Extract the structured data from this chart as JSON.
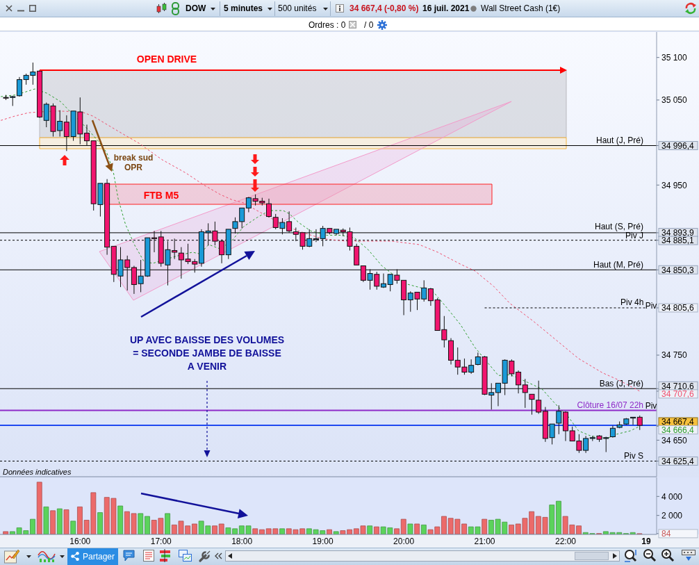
{
  "chart_data": [
    {
      "type": "candlestick",
      "title": "DOW",
      "subtitle": "5 minutes",
      "x": [
        15.0833,
        15.1667,
        15.25,
        15.3333,
        15.4167,
        15.5,
        15.5833,
        15.6667,
        15.75,
        15.8333,
        15.9167,
        16,
        16.0833,
        16.1667,
        16.25,
        16.3333,
        16.4167,
        16.5,
        16.5833,
        16.6667,
        16.75,
        16.8333,
        16.9167,
        17,
        17.0833,
        17.1667,
        17.25,
        17.3333,
        17.4167,
        17.5,
        17.5833,
        17.6667,
        17.75,
        17.8333,
        17.9167,
        18,
        18.0833,
        18.1667,
        18.25,
        18.3333,
        18.4167,
        18.5,
        18.5833,
        18.6667,
        18.75,
        18.8333,
        18.9167,
        19,
        19.0833,
        19.1667,
        19.25,
        19.3333,
        19.4167,
        19.5,
        19.5833,
        19.6667,
        19.75,
        19.8333,
        19.9167,
        20,
        20.0833,
        20.1667,
        20.25,
        20.3333,
        20.4167,
        20.5,
        20.5833,
        20.6667,
        20.75,
        20.8333,
        20.9167,
        21,
        21.0833,
        21.1667,
        21.25,
        21.3333,
        21.4167,
        21.5,
        21.5833,
        21.6667,
        21.75,
        21.8333,
        21.9167,
        22,
        22.0833,
        22.1667,
        22.25,
        22.3333,
        22.4167,
        22.5,
        22.5833,
        22.6667,
        22.75,
        22.8333,
        22.9167
      ],
      "ohlc": [
        [
          35053,
          35056,
          35050,
          35053
        ],
        [
          35053,
          35055,
          35043,
          35054
        ],
        [
          35055,
          35077,
          35054,
          35074
        ],
        [
          35074,
          35081,
          35068,
          35079
        ],
        [
          35079,
          35094,
          35068,
          35083
        ],
        [
          35084,
          35085,
          35029,
          35030
        ],
        [
          35026,
          35047,
          35018,
          35045
        ],
        [
          35043,
          35046,
          35007,
          35013
        ],
        [
          35014,
          35038,
          35007,
          35025
        ],
        [
          35024,
          35032,
          34990,
          35007
        ],
        [
          35007,
          35037,
          35002,
          35037
        ],
        [
          35036,
          35053,
          34998,
          35010
        ],
        [
          35011,
          35021,
          34996,
          35002
        ],
        [
          35002,
          35002,
          34920,
          34928
        ],
        [
          34927,
          34952,
          34913,
          34952
        ],
        [
          34952,
          34957,
          34868,
          34877
        ],
        [
          34878,
          34878,
          34836,
          34845
        ],
        [
          34843,
          34877,
          34830,
          34862
        ],
        [
          34862,
          34867,
          34826,
          34853
        ],
        [
          34853,
          34855,
          34822,
          34833
        ],
        [
          34834,
          34862,
          34824,
          34843
        ],
        [
          34843,
          34888,
          34842,
          34888
        ],
        [
          34888,
          34896,
          34871,
          34887
        ],
        [
          34889,
          34896,
          34854,
          34858
        ],
        [
          34856,
          34884,
          34832,
          34874
        ],
        [
          34873,
          34887,
          34863,
          34871
        ],
        [
          34870,
          34877,
          34840,
          34862
        ],
        [
          34863,
          34881,
          34857,
          34860
        ],
        [
          34860,
          34863,
          34847,
          34857
        ],
        [
          34858,
          34898,
          34854,
          34895
        ],
        [
          34894,
          34905,
          34879,
          34896
        ],
        [
          34896,
          34907,
          34879,
          34884
        ],
        [
          34884,
          34886,
          34858,
          34868
        ],
        [
          34868,
          34898,
          34863,
          34898
        ],
        [
          34899,
          34912,
          34893,
          34907
        ],
        [
          34907,
          34923,
          34899,
          34923
        ],
        [
          34923,
          34936,
          34918,
          34935
        ],
        [
          34934,
          34939,
          34926,
          34931
        ],
        [
          34931,
          34935,
          34926,
          34929
        ],
        [
          34928,
          34934,
          34912,
          34913
        ],
        [
          34912,
          34916,
          34898,
          34900
        ],
        [
          34899,
          34911,
          34892,
          34906
        ],
        [
          34907,
          34919,
          34894,
          34896
        ],
        [
          34895,
          34900,
          34884,
          34892
        ],
        [
          34894,
          34894,
          34874,
          34878
        ],
        [
          34878,
          34898,
          34877,
          34887
        ],
        [
          34886,
          34898,
          34883,
          34887
        ],
        [
          34887,
          34902,
          34878,
          34899
        ],
        [
          34899,
          34899,
          34892,
          34894
        ],
        [
          34893,
          34898,
          34891,
          34898
        ],
        [
          34897,
          34899,
          34890,
          34895
        ],
        [
          34895,
          34900,
          34873,
          34878
        ],
        [
          34878,
          34881,
          34856,
          34856
        ],
        [
          34855,
          34855,
          34836,
          34838
        ],
        [
          34838,
          34851,
          34827,
          34846
        ],
        [
          34845,
          34848,
          34827,
          34831
        ],
        [
          34830,
          34846,
          34829,
          34834
        ],
        [
          34833,
          34845,
          34825,
          34845
        ],
        [
          34844,
          34851,
          34834,
          34838
        ],
        [
          34838,
          34838,
          34797,
          34815
        ],
        [
          34815,
          34825,
          34801,
          34823
        ],
        [
          34824,
          34824,
          34803,
          34816
        ],
        [
          34816,
          34838,
          34813,
          34829
        ],
        [
          34828,
          34829,
          34808,
          34814
        ],
        [
          34815,
          34817,
          34779,
          34779
        ],
        [
          34780,
          34796,
          34759,
          34768
        ],
        [
          34767,
          34770,
          34739,
          34744
        ],
        [
          34744,
          34759,
          34727,
          34736
        ],
        [
          34736,
          34746,
          34727,
          34730
        ],
        [
          34730,
          34745,
          34728,
          34738
        ],
        [
          34739,
          34753,
          34738,
          34748
        ],
        [
          34748,
          34749,
          34703,
          34704
        ],
        [
          34703,
          34717,
          34686,
          34706
        ],
        [
          34706,
          34717,
          34690,
          34717
        ],
        [
          34717,
          34745,
          34703,
          34744
        ],
        [
          34743,
          34745,
          34725,
          34728
        ],
        [
          34730,
          34732,
          34705,
          34715
        ],
        [
          34715,
          34722,
          34688,
          34706
        ],
        [
          34704,
          34704,
          34680,
          34698
        ],
        [
          34697,
          34720,
          34681,
          34683
        ],
        [
          34684,
          34689,
          34648,
          34652
        ],
        [
          34653,
          34669,
          34645,
          34669
        ],
        [
          34670,
          34691,
          34657,
          34684
        ],
        [
          34683,
          34684,
          34649,
          34661
        ],
        [
          34661,
          34666,
          34649,
          34649
        ],
        [
          34649,
          34657,
          34635,
          34638
        ],
        [
          34638,
          34655,
          34635,
          34652
        ],
        [
          34652,
          34655,
          34649,
          34653
        ],
        [
          34655,
          34656,
          34648,
          34651
        ],
        [
          34652,
          34654,
          34636,
          34653
        ],
        [
          34654,
          34667,
          34653,
          34664
        ],
        [
          34665,
          34672,
          34664,
          34668
        ],
        [
          34669,
          34676,
          34668,
          34675
        ],
        [
          34676,
          34677,
          34668,
          34677
        ],
        [
          34677,
          34679,
          34662,
          34667.4
        ]
      ],
      "colors": [
        "#f2156f",
        "#1b9ad7",
        "#1b9ad7",
        "#1b9ad7",
        "#1b9ad7",
        "#f2156f",
        "#1b9ad7",
        "#f2156f",
        "#1b9ad7",
        "#f2156f",
        "#1b9ad7",
        "#f2156f",
        "#f2156f",
        "#f2156f",
        "#1b9ad7",
        "#f2156f",
        "#f2156f",
        "#1b9ad7",
        "#f2156f",
        "#f2156f",
        "#1b9ad7",
        "#1b9ad7",
        "#f2156f",
        "#f2156f",
        "#1b9ad7",
        "#f2156f",
        "#f2156f",
        "#f2156f",
        "#f2156f",
        "#1b9ad7",
        "#1b9ad7",
        "#f2156f",
        "#f2156f",
        "#1b9ad7",
        "#1b9ad7",
        "#1b9ad7",
        "#1b9ad7",
        "#f2156f",
        "#f2156f",
        "#f2156f",
        "#f2156f",
        "#1b9ad7",
        "#f2156f",
        "#f2156f",
        "#f2156f",
        "#1b9ad7",
        "#1b9ad7",
        "#1b9ad7",
        "#f2156f",
        "#1b9ad7",
        "#f2156f",
        "#f2156f",
        "#f2156f",
        "#f2156f",
        "#1b9ad7",
        "#f2156f",
        "#1b9ad7",
        "#1b9ad7",
        "#f2156f",
        "#f2156f",
        "#1b9ad7",
        "#f2156f",
        "#1b9ad7",
        "#f2156f",
        "#f2156f",
        "#f2156f",
        "#f2156f",
        "#f2156f",
        "#f2156f",
        "#1b9ad7",
        "#1b9ad7",
        "#f2156f",
        "#1b9ad7",
        "#1b9ad7",
        "#1b9ad7",
        "#f2156f",
        "#f2156f",
        "#f2156f",
        "#f2156f",
        "#f2156f",
        "#f2156f",
        "#1b9ad7",
        "#1b9ad7",
        "#f2156f",
        "#f2156f",
        "#f2156f",
        "#1b9ad7",
        "#1b9ad7",
        "#f2156f",
        "#1b9ad7",
        "#1b9ad7",
        "#1b9ad7",
        "#1b9ad7",
        "#1b9ad7",
        "#f2156f"
      ],
      "series": [
        {
          "type": "line",
          "x": [
            15.02,
            15.21,
            15.44,
            15.59,
            15.76,
            15.87,
            16.02,
            16.1,
            16.22,
            16.33,
            16.41,
            16.47,
            16.56,
            16.67,
            16.79,
            16.9,
            17.07,
            17.25,
            17.39,
            17.48,
            17.59,
            17.73,
            17.87,
            18.02,
            18.19,
            18.34,
            18.51,
            18.59,
            18.7,
            18.85,
            19.05,
            19.22,
            19.39,
            19.56,
            19.73,
            19.88,
            20.02,
            20.22,
            20.36,
            20.53,
            20.7,
            20.88,
            21.17,
            21.31,
            21.39,
            21.6,
            21.71,
            21.88,
            22.03,
            22.16,
            22.31,
            22.51,
            22.63,
            22.8,
            22.9167
          ],
          "values": [
            35054,
            35056,
            35063,
            35058,
            35048,
            35037,
            35023,
            35015,
            35002,
            34988,
            34966,
            34934,
            34904,
            34880,
            34860,
            34858,
            34863,
            34868,
            34871,
            34869,
            34880,
            34875,
            34884,
            34901,
            34912,
            34920,
            34920,
            34916,
            34906,
            34896,
            34891,
            34891,
            34888,
            34874,
            34855,
            34844,
            34834,
            34829,
            34825,
            34806,
            34786,
            34759,
            34726,
            34727,
            34724,
            34715,
            34710,
            34692,
            34678,
            34661,
            34655,
            34652,
            34657,
            34661,
            34666.4
          ],
          "color": "#2e9e2e",
          "line_style": "dashed"
        },
        {
          "type": "line",
          "x": [
            15.02,
            15.19,
            15.36,
            15.5,
            15.73,
            16.02,
            16.16,
            16.3,
            16.53,
            16.73,
            17.01,
            17.31,
            17.53,
            17.73,
            17.87,
            18.02,
            18.28,
            18.56,
            18.79,
            18.99,
            19.28,
            19.56,
            19.85,
            20.19,
            20.42,
            20.7,
            20.88,
            21.11,
            21.31,
            21.6,
            21.88,
            22.16,
            22.46,
            22.65,
            22.9167
          ],
          "values": [
            35026,
            35031,
            35035,
            35036,
            35037,
            35036,
            35031,
            35023,
            35010,
            34999,
            34980,
            34964,
            34950,
            34939,
            34933,
            34929,
            34915,
            34901,
            34893,
            34887,
            34884,
            34884,
            34884,
            34880,
            34871,
            34857,
            34849,
            34831,
            34811,
            34790,
            34768,
            34746,
            34729,
            34721,
            34707.6
          ],
          "color": "#f0506e",
          "line_style": "dashed"
        },
        {
          "type": "line",
          "name": "Piv 4h",
          "x": [
            21,
            23
          ],
          "values": [
            34805.6,
            34805.6
          ],
          "color": "#000000",
          "line_style": "dashed"
        }
      ],
      "xlim": [
        15.01,
        23.125
      ],
      "ylim": [
        34607,
        35130
      ],
      "yticks": [
        {
          "value": 35100,
          "label": "35 100"
        },
        {
          "value": 35050,
          "label": "35 050"
        },
        {
          "value": 34996.4,
          "label": "34 996,4"
        },
        {
          "value": 34950,
          "label": "34 950"
        },
        {
          "value": 34893.9,
          "label": "34 893,9"
        },
        {
          "value": 34885.1,
          "label": "34 885,1"
        },
        {
          "value": 34850.3,
          "label": "34 850,3"
        },
        {
          "value": 34805.6,
          "label": "34 805,6"
        },
        {
          "value": 34750,
          "label": "34 750"
        },
        {
          "value": 34710.6,
          "label": "34 710,6"
        },
        {
          "value": 34707.6,
          "label": "34 707,6"
        },
        {
          "value": 34667.4,
          "label": "34 667,4"
        },
        {
          "value": 34666.4,
          "label": "34 666,4"
        },
        {
          "value": 34650,
          "label": "34 650"
        },
        {
          "value": 34625.4,
          "label": "34 625,4"
        }
      ],
      "ref_lines": [
        {
          "axis": "y",
          "value": 34996.4,
          "label": "Haut (J, Pré)",
          "color": "#000000"
        },
        {
          "axis": "y",
          "value": 34893.9,
          "label": "Haut (S, Pré)",
          "color": "#000000"
        },
        {
          "axis": "y",
          "value": 34885.1,
          "label": "Piv J",
          "color": "#000000",
          "line_style": "dashed"
        },
        {
          "axis": "y",
          "value": 34850.3,
          "label": "Haut (M, Pré)",
          "color": "#000000"
        },
        {
          "axis": "y",
          "value": 34710.6,
          "label": "Bas (J, Pré)",
          "color": "#000000"
        },
        {
          "axis": "y",
          "value": 34685,
          "label": "Clôture 16/07 22h",
          "color": "#8e2ac8"
        },
        {
          "axis": "y",
          "value": 34667.4,
          "color": "#1f49f0"
        },
        {
          "axis": "y",
          "value": 34625.4,
          "label": "Piv S",
          "color": "#000000",
          "line_style": "dashed"
        }
      ],
      "annotations": [
        "500 unités",
        "34 667,4 (-0,80 %)",
        "16 juil. 2021",
        "Wall Street Cash (1€)",
        "Ordres : 0",
        "/ 0",
        "Partager",
        "Données indicatives",
        "OPEN DRIVE",
        "break sud\nOPR",
        "FTB M5",
        "UP AVEC BAISSE DES VOLUMES\n= SECONDE JAMBE DE BAISSE\nA VENIR",
        "Piv",
        "Piv"
      ],
      "tick_labels": "y"
    },
    {
      "type": "bar",
      "x": [
        15.0833,
        15.1667,
        15.25,
        15.3333,
        15.4167,
        15.5,
        15.5833,
        15.6667,
        15.75,
        15.8333,
        15.9167,
        16,
        16.0833,
        16.1667,
        16.25,
        16.3333,
        16.4167,
        16.5,
        16.5833,
        16.6667,
        16.75,
        16.8333,
        16.9167,
        17,
        17.0833,
        17.1667,
        17.25,
        17.3333,
        17.4167,
        17.5,
        17.5833,
        17.6667,
        17.75,
        17.8333,
        17.9167,
        18,
        18.0833,
        18.1667,
        18.25,
        18.3333,
        18.4167,
        18.5,
        18.5833,
        18.6667,
        18.75,
        18.8333,
        18.9167,
        19,
        19.0833,
        19.1667,
        19.25,
        19.3333,
        19.4167,
        19.5,
        19.5833,
        19.6667,
        19.75,
        19.8333,
        19.9167,
        20,
        20.0833,
        20.1667,
        20.25,
        20.3333,
        20.4167,
        20.5,
        20.5833,
        20.6667,
        20.75,
        20.8333,
        20.9167,
        21,
        21.0833,
        21.1667,
        21.25,
        21.3333,
        21.4167,
        21.5,
        21.5833,
        21.6667,
        21.75,
        21.8333,
        21.9167,
        22,
        22.0833,
        22.1667,
        22.25,
        22.3333,
        22.4167,
        22.5,
        22.5833,
        22.6667,
        22.75,
        22.8333,
        22.9167
      ],
      "values": [
        300,
        300,
        700,
        400,
        1600,
        5500,
        2900,
        2500,
        2700,
        2600,
        1400,
        2900,
        1500,
        4400,
        2300,
        3900,
        3800,
        3000,
        2400,
        2200,
        2200,
        1900,
        1500,
        1700,
        2200,
        1000,
        1400,
        900,
        1100,
        1400,
        900,
        900,
        1100,
        700,
        600,
        900,
        900,
        600,
        500,
        600,
        600,
        600,
        600,
        500,
        600,
        600,
        500,
        400,
        500,
        300,
        400,
        500,
        600,
        900,
        900,
        800,
        800,
        700,
        600,
        1600,
        1100,
        1100,
        1000,
        500,
        800,
        1900,
        1700,
        1600,
        1100,
        800,
        800,
        1600,
        1500,
        1600,
        1300,
        1000,
        1100,
        1700,
        2400,
        1900,
        1800,
        3100,
        3500,
        1900,
        1000,
        900,
        200,
        100,
        100,
        300,
        200,
        200,
        100,
        200,
        84
      ],
      "colors": [
        "#ec6a6a",
        "#5bd35b",
        "#5bd35b",
        "#5bd35b",
        "#5bd35b",
        "#ec6a6a",
        "#5bd35b",
        "#ec6a6a",
        "#5bd35b",
        "#ec6a6a",
        "#5bd35b",
        "#ec6a6a",
        "#ec6a6a",
        "#ec6a6a",
        "#5bd35b",
        "#ec6a6a",
        "#ec6a6a",
        "#5bd35b",
        "#ec6a6a",
        "#ec6a6a",
        "#5bd35b",
        "#5bd35b",
        "#ec6a6a",
        "#ec6a6a",
        "#5bd35b",
        "#ec6a6a",
        "#ec6a6a",
        "#ec6a6a",
        "#ec6a6a",
        "#5bd35b",
        "#5bd35b",
        "#ec6a6a",
        "#ec6a6a",
        "#5bd35b",
        "#5bd35b",
        "#5bd35b",
        "#5bd35b",
        "#ec6a6a",
        "#ec6a6a",
        "#ec6a6a",
        "#ec6a6a",
        "#5bd35b",
        "#ec6a6a",
        "#ec6a6a",
        "#ec6a6a",
        "#5bd35b",
        "#5bd35b",
        "#5bd35b",
        "#ec6a6a",
        "#5bd35b",
        "#ec6a6a",
        "#ec6a6a",
        "#ec6a6a",
        "#ec6a6a",
        "#5bd35b",
        "#ec6a6a",
        "#5bd35b",
        "#5bd35b",
        "#ec6a6a",
        "#ec6a6a",
        "#5bd35b",
        "#ec6a6a",
        "#5bd35b",
        "#ec6a6a",
        "#ec6a6a",
        "#ec6a6a",
        "#ec6a6a",
        "#ec6a6a",
        "#ec6a6a",
        "#5bd35b",
        "#5bd35b",
        "#ec6a6a",
        "#5bd35b",
        "#5bd35b",
        "#5bd35b",
        "#ec6a6a",
        "#ec6a6a",
        "#ec6a6a",
        "#ec6a6a",
        "#ec6a6a",
        "#ec6a6a",
        "#5bd35b",
        "#5bd35b",
        "#ec6a6a",
        "#ec6a6a",
        "#ec6a6a",
        "#5bd35b",
        "#5bd35b",
        "#ec6a6a",
        "#5bd35b",
        "#5bd35b",
        "#5bd35b",
        "#5bd35b",
        "#5bd35b",
        "#ec6a6a"
      ],
      "xlim": [
        15.01,
        23.125
      ],
      "xticks": [
        {
          "value": 16,
          "label": "16:00"
        },
        {
          "value": 17,
          "label": "17:00"
        },
        {
          "value": 18,
          "label": "18:00"
        },
        {
          "value": 19,
          "label": "19:00"
        },
        {
          "value": 20,
          "label": "20:00"
        },
        {
          "value": 21,
          "label": "21:00"
        },
        {
          "value": 22,
          "label": "22:00"
        }
      ],
      "ylim": [
        0,
        6000
      ],
      "yticks": [
        {
          "value": 2000,
          "label": "2 000"
        },
        {
          "value": 4000,
          "label": "4 000"
        },
        84
      ],
      "annotations": [
        "19"
      ]
    }
  ]
}
